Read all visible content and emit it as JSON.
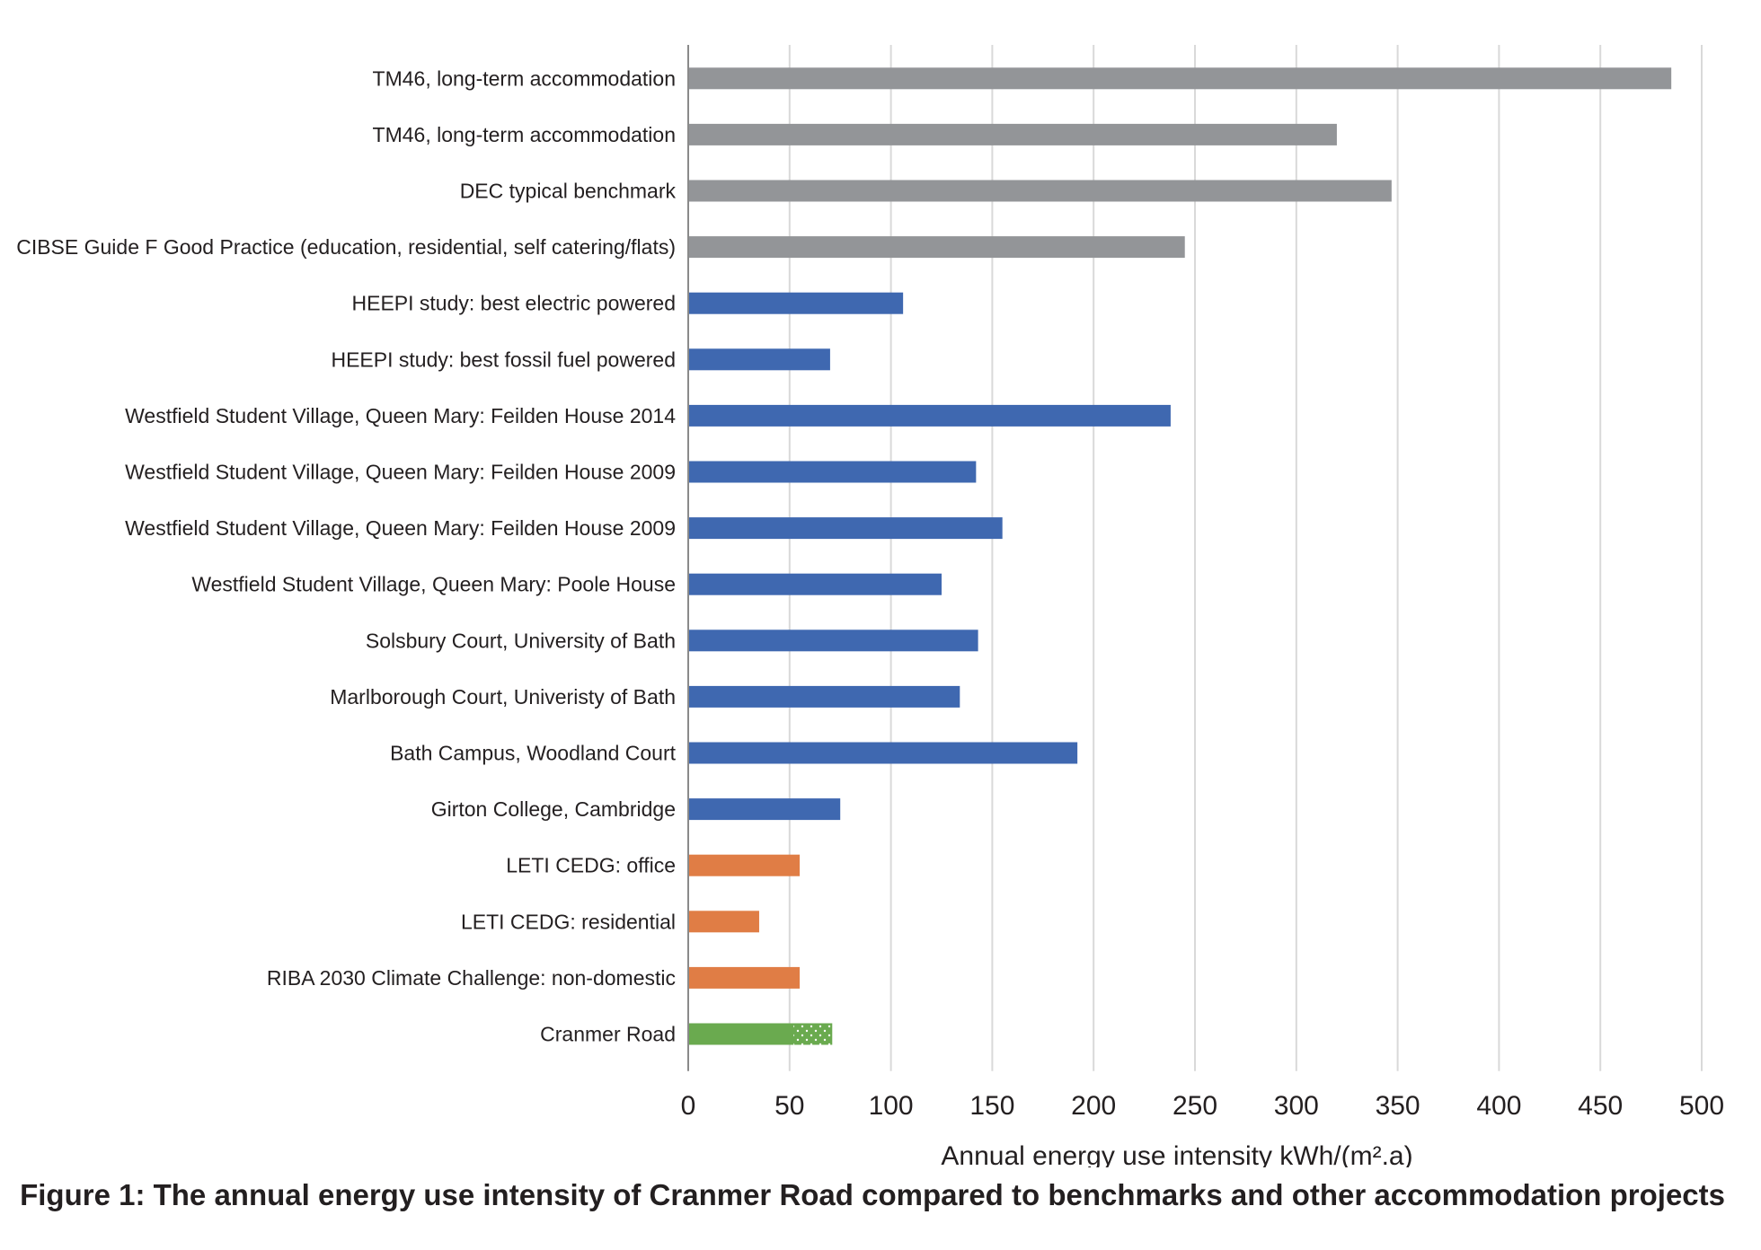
{
  "chart_data": {
    "type": "bar",
    "orientation": "horizontal",
    "categories": [
      "TM46, long-term accommodation",
      "TM46, long-term accommodation",
      "DEC typical benchmark",
      "CIBSE Guide F Good Practice (education, residential, self catering/flats)",
      "HEEPI study: best electric powered",
      "HEEPI study: best fossil fuel powered",
      "Westfield Student Village, Queen Mary: Feilden House 2014",
      "Westfield Student Village, Queen Mary: Feilden House 2009",
      "Westfield Student Village, Queen Mary: Feilden House 2009",
      "Westfield Student Village, Queen Mary: Poole House",
      "Solsbury Court, University of Bath",
      "Marlborough Court, Univeristy of Bath",
      "Bath Campus, Woodland Court",
      "Girton College, Cambridge",
      "LETI CEDG: office",
      "LETI CEDG: residential",
      "RIBA 2030 Climate Challenge: non-domestic",
      "Cranmer Road"
    ],
    "values": [
      485,
      320,
      347,
      245,
      106,
      70,
      238,
      142,
      155,
      125,
      143,
      134,
      192,
      75,
      55,
      35,
      55,
      71
    ],
    "bar_colors": [
      "#939598",
      "#939598",
      "#939598",
      "#939598",
      "#3f68b0",
      "#3f68b0",
      "#3f68b0",
      "#3f68b0",
      "#3f68b0",
      "#3f68b0",
      "#3f68b0",
      "#3f68b0",
      "#3f68b0",
      "#3f68b0",
      "#e07d45",
      "#e07d45",
      "#e07d45",
      "#6aaa4f"
    ],
    "patterned_segment": {
      "index": 17,
      "from": 52,
      "to": 71
    },
    "x_ticks": [
      "0",
      "50",
      "100",
      "150",
      "200",
      "250",
      "300",
      "350",
      "400",
      "450",
      "500"
    ],
    "xlim": [
      0,
      500
    ],
    "xlabel": "Annual energy use intensity kWh/(m².a)",
    "grid": "vertical",
    "legend": "none"
  },
  "caption": "Figure 1: The annual energy use intensity of Cranmer Road compared to benchmarks and other accommodation projects"
}
